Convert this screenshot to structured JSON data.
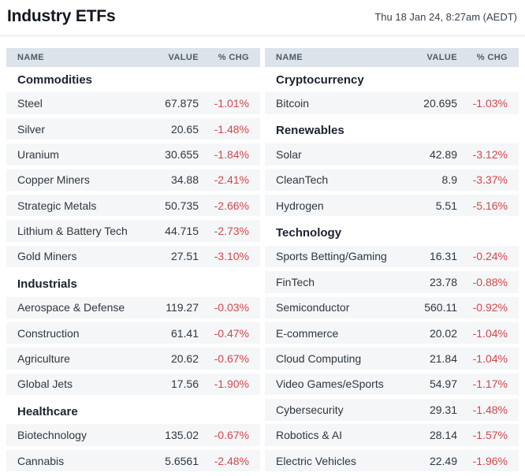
{
  "page": {
    "title": "Industry ETFs",
    "timestamp": "Thu 18 Jan 24, 8:27am (AEDT)"
  },
  "columns": {
    "name": "NAME",
    "value": "VALUE",
    "chg": "% CHG"
  },
  "colors": {
    "negative_red": "#d5474e",
    "column_header_bg": "#dce3ea",
    "data_row_bg": "#f4f6f7",
    "title_text": "#12161f",
    "section_text": "#1b2330",
    "body_text": "#2e3741"
  },
  "tables": {
    "left": [
      {
        "section": "Commodities"
      },
      {
        "name": "Steel",
        "value": "67.875",
        "chg": "-1.01%"
      },
      {
        "name": "Silver",
        "value": "20.65",
        "chg": "-1.48%"
      },
      {
        "name": "Uranium",
        "value": "30.655",
        "chg": "-1.84%"
      },
      {
        "name": "Copper Miners",
        "value": "34.88",
        "chg": "-2.41%"
      },
      {
        "name": "Strategic Metals",
        "value": "50.735",
        "chg": "-2.66%"
      },
      {
        "name": "Lithium & Battery Tech",
        "value": "44.715",
        "chg": "-2.73%"
      },
      {
        "name": "Gold Miners",
        "value": "27.51",
        "chg": "-3.10%"
      },
      {
        "section": "Industrials"
      },
      {
        "name": "Aerospace & Defense",
        "value": "119.27",
        "chg": "-0.03%"
      },
      {
        "name": "Construction",
        "value": "61.41",
        "chg": "-0.47%"
      },
      {
        "name": "Agriculture",
        "value": "20.62",
        "chg": "-0.67%"
      },
      {
        "name": "Global Jets",
        "value": "17.56",
        "chg": "-1.90%"
      },
      {
        "section": "Healthcare"
      },
      {
        "name": "Biotechnology",
        "value": "135.02",
        "chg": "-0.67%"
      },
      {
        "name": "Cannabis",
        "value": "5.6561",
        "chg": "-2.48%"
      }
    ],
    "right": [
      {
        "section": "Cryptocurrency"
      },
      {
        "name": "Bitcoin",
        "value": "20.695",
        "chg": "-1.03%"
      },
      {
        "section": "Renewables"
      },
      {
        "name": "Solar",
        "value": "42.89",
        "chg": "-3.12%"
      },
      {
        "name": "CleanTech",
        "value": "8.9",
        "chg": "-3.37%"
      },
      {
        "name": "Hydrogen",
        "value": "5.51",
        "chg": "-5.16%"
      },
      {
        "section": "Technology"
      },
      {
        "name": "Sports Betting/Gaming",
        "value": "16.31",
        "chg": "-0.24%"
      },
      {
        "name": "FinTech",
        "value": "23.78",
        "chg": "-0.88%"
      },
      {
        "name": "Semiconductor",
        "value": "560.11",
        "chg": "-0.92%"
      },
      {
        "name": "E-commerce",
        "value": "20.02",
        "chg": "-1.04%"
      },
      {
        "name": "Cloud Computing",
        "value": "21.84",
        "chg": "-1.04%"
      },
      {
        "name": "Video Games/eSports",
        "value": "54.97",
        "chg": "-1.17%"
      },
      {
        "name": "Cybersecurity",
        "value": "29.31",
        "chg": "-1.48%"
      },
      {
        "name": "Robotics & AI",
        "value": "28.14",
        "chg": "-1.57%"
      },
      {
        "name": "Electric Vehicles",
        "value": "22.49",
        "chg": "-1.96%"
      }
    ]
  }
}
